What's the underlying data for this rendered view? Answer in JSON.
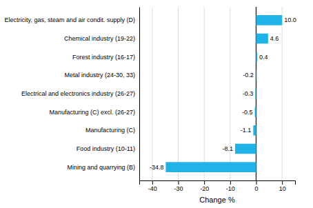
{
  "chart_data": {
    "type": "bar",
    "orientation": "horizontal",
    "categories": [
      "Mining and quarrying (B)",
      "Food industry (10-11)",
      "Manufacturing (C)",
      "Manufacturing (C) excl. (26-27)",
      "Electrical and electronics industry (26-27)",
      "Metal industry (24-30, 33)",
      "Forest industry (16-17)",
      "Chemical industry (19-22)",
      "Electricity, gas, steam and air condit. supply (D)"
    ],
    "values": [
      -34.8,
      -8.1,
      -1.1,
      -0.5,
      -0.3,
      -0.2,
      0.4,
      4.6,
      10.0
    ],
    "value_labels": [
      "-34.8",
      "-8.1",
      "-1.1",
      "-0.5",
      "-0.3",
      "-0.2",
      "0.4",
      "4.6",
      "10.0"
    ],
    "data_labels": true,
    "color": "#1fb3e8",
    "xlabel": "Change %",
    "xlim": [
      -45,
      15
    ],
    "xticks": [
      -40,
      -30,
      -20,
      -10,
      0,
      10
    ],
    "grid": true
  }
}
